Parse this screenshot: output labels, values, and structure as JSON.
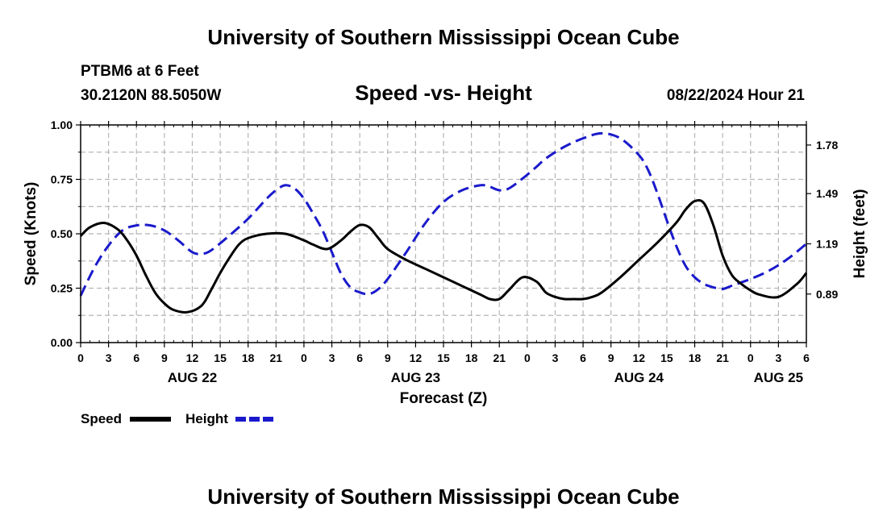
{
  "chart_data": {
    "type": "line",
    "title": "University of Southern Mississippi Ocean Cube",
    "footer_title": "University of Southern Mississippi Ocean Cube",
    "station": "PTBM6 at 6 Feet",
    "location": "30.2120N  88.5050W",
    "subtitle": "Speed -vs- Height",
    "datetime": "08/22/2024 Hour 21",
    "xlabel": "Forecast (Z)",
    "ylabel_left": "Speed (Knots)",
    "ylabel_right": "Height (feet)",
    "x_range_hours": [
      0,
      78
    ],
    "y_left_range": [
      0.0,
      1.0
    ],
    "y_right_range": [
      0.6,
      1.9
    ],
    "x_ticks": [
      {
        "h": 0,
        "label": "0"
      },
      {
        "h": 3,
        "label": "3"
      },
      {
        "h": 6,
        "label": "6"
      },
      {
        "h": 9,
        "label": "9"
      },
      {
        "h": 12,
        "label": "12"
      },
      {
        "h": 15,
        "label": "15"
      },
      {
        "h": 18,
        "label": "18"
      },
      {
        "h": 21,
        "label": "21"
      },
      {
        "h": 24,
        "label": "0"
      },
      {
        "h": 27,
        "label": "3"
      },
      {
        "h": 30,
        "label": "6"
      },
      {
        "h": 33,
        "label": "9"
      },
      {
        "h": 36,
        "label": "12"
      },
      {
        "h": 39,
        "label": "15"
      },
      {
        "h": 42,
        "label": "18"
      },
      {
        "h": 45,
        "label": "21"
      },
      {
        "h": 48,
        "label": "0"
      },
      {
        "h": 51,
        "label": "3"
      },
      {
        "h": 54,
        "label": "6"
      },
      {
        "h": 57,
        "label": "9"
      },
      {
        "h": 60,
        "label": "12"
      },
      {
        "h": 63,
        "label": "15"
      },
      {
        "h": 66,
        "label": "18"
      },
      {
        "h": 69,
        "label": "21"
      },
      {
        "h": 72,
        "label": "0"
      },
      {
        "h": 75,
        "label": "3"
      },
      {
        "h": 78,
        "label": "6"
      }
    ],
    "date_labels": [
      {
        "h": 12,
        "label": "AUG 22"
      },
      {
        "h": 36,
        "label": "AUG 23"
      },
      {
        "h": 60,
        "label": "AUG 24"
      },
      {
        "h": 75,
        "label": "AUG 25"
      }
    ],
    "y_left_ticks": [
      "0.00",
      "0.25",
      "0.50",
      "0.75",
      "1.00"
    ],
    "y_right_ticks": [
      {
        "value": 0.89,
        "label": "0.89"
      },
      {
        "value": 1.19,
        "label": "1.19"
      },
      {
        "value": 1.49,
        "label": "1.49"
      },
      {
        "value": 1.78,
        "label": "1.78"
      }
    ],
    "legend": [
      {
        "name": "Speed",
        "color": "#000000",
        "style": "solid"
      },
      {
        "name": "Height",
        "color": "#1a1acc",
        "style": "dashed"
      }
    ],
    "series": [
      {
        "name": "Speed",
        "axis": "left",
        "color": "#000000",
        "x": [
          0,
          1,
          2.5,
          4,
          5,
          6,
          7,
          8,
          9,
          10,
          11.5,
          13,
          14,
          15,
          16,
          17,
          18,
          20,
          22,
          24,
          25,
          26.5,
          28,
          29,
          30,
          31,
          32,
          33,
          35,
          37,
          39,
          41,
          43,
          44,
          45,
          46,
          47.5,
          49,
          50,
          51,
          52,
          53,
          54,
          55,
          56,
          58,
          60,
          62,
          64,
          65,
          66,
          67,
          68,
          69,
          70,
          71,
          72,
          73,
          75,
          77,
          78
        ],
        "values": [
          0.49,
          0.53,
          0.55,
          0.52,
          0.47,
          0.4,
          0.31,
          0.23,
          0.18,
          0.15,
          0.14,
          0.17,
          0.24,
          0.32,
          0.39,
          0.45,
          0.48,
          0.5,
          0.5,
          0.47,
          0.45,
          0.43,
          0.47,
          0.51,
          0.54,
          0.53,
          0.48,
          0.43,
          0.38,
          0.34,
          0.3,
          0.26,
          0.22,
          0.2,
          0.2,
          0.24,
          0.3,
          0.28,
          0.23,
          0.21,
          0.2,
          0.2,
          0.2,
          0.21,
          0.23,
          0.3,
          0.38,
          0.46,
          0.55,
          0.61,
          0.65,
          0.64,
          0.54,
          0.4,
          0.31,
          0.27,
          0.24,
          0.22,
          0.21,
          0.27,
          0.32
        ]
      },
      {
        "name": "Height",
        "axis": "right",
        "color": "#1a1acc",
        "x": [
          0,
          1.5,
          3,
          4.5,
          6,
          7.5,
          9,
          10.5,
          12,
          13,
          14,
          16,
          18,
          20,
          21,
          22,
          23,
          24,
          25,
          26,
          27,
          28,
          29,
          30,
          31,
          32,
          33,
          35,
          37,
          39,
          41,
          43,
          44,
          45,
          46,
          47.5,
          49,
          50,
          52,
          54,
          56,
          58,
          60,
          61,
          62,
          63,
          64,
          65,
          66,
          67,
          68,
          69,
          70,
          72,
          74,
          76,
          78
        ],
        "values": [
          0.88,
          1.05,
          1.18,
          1.27,
          1.3,
          1.3,
          1.27,
          1.21,
          1.14,
          1.13,
          1.15,
          1.24,
          1.34,
          1.46,
          1.51,
          1.54,
          1.52,
          1.46,
          1.37,
          1.27,
          1.14,
          1.01,
          0.93,
          0.9,
          0.89,
          0.92,
          0.98,
          1.14,
          1.31,
          1.44,
          1.51,
          1.54,
          1.53,
          1.51,
          1.52,
          1.58,
          1.65,
          1.7,
          1.77,
          1.82,
          1.85,
          1.82,
          1.72,
          1.63,
          1.49,
          1.33,
          1.18,
          1.06,
          0.99,
          0.95,
          0.93,
          0.92,
          0.94,
          0.98,
          1.03,
          1.1,
          1.19
        ]
      }
    ]
  }
}
